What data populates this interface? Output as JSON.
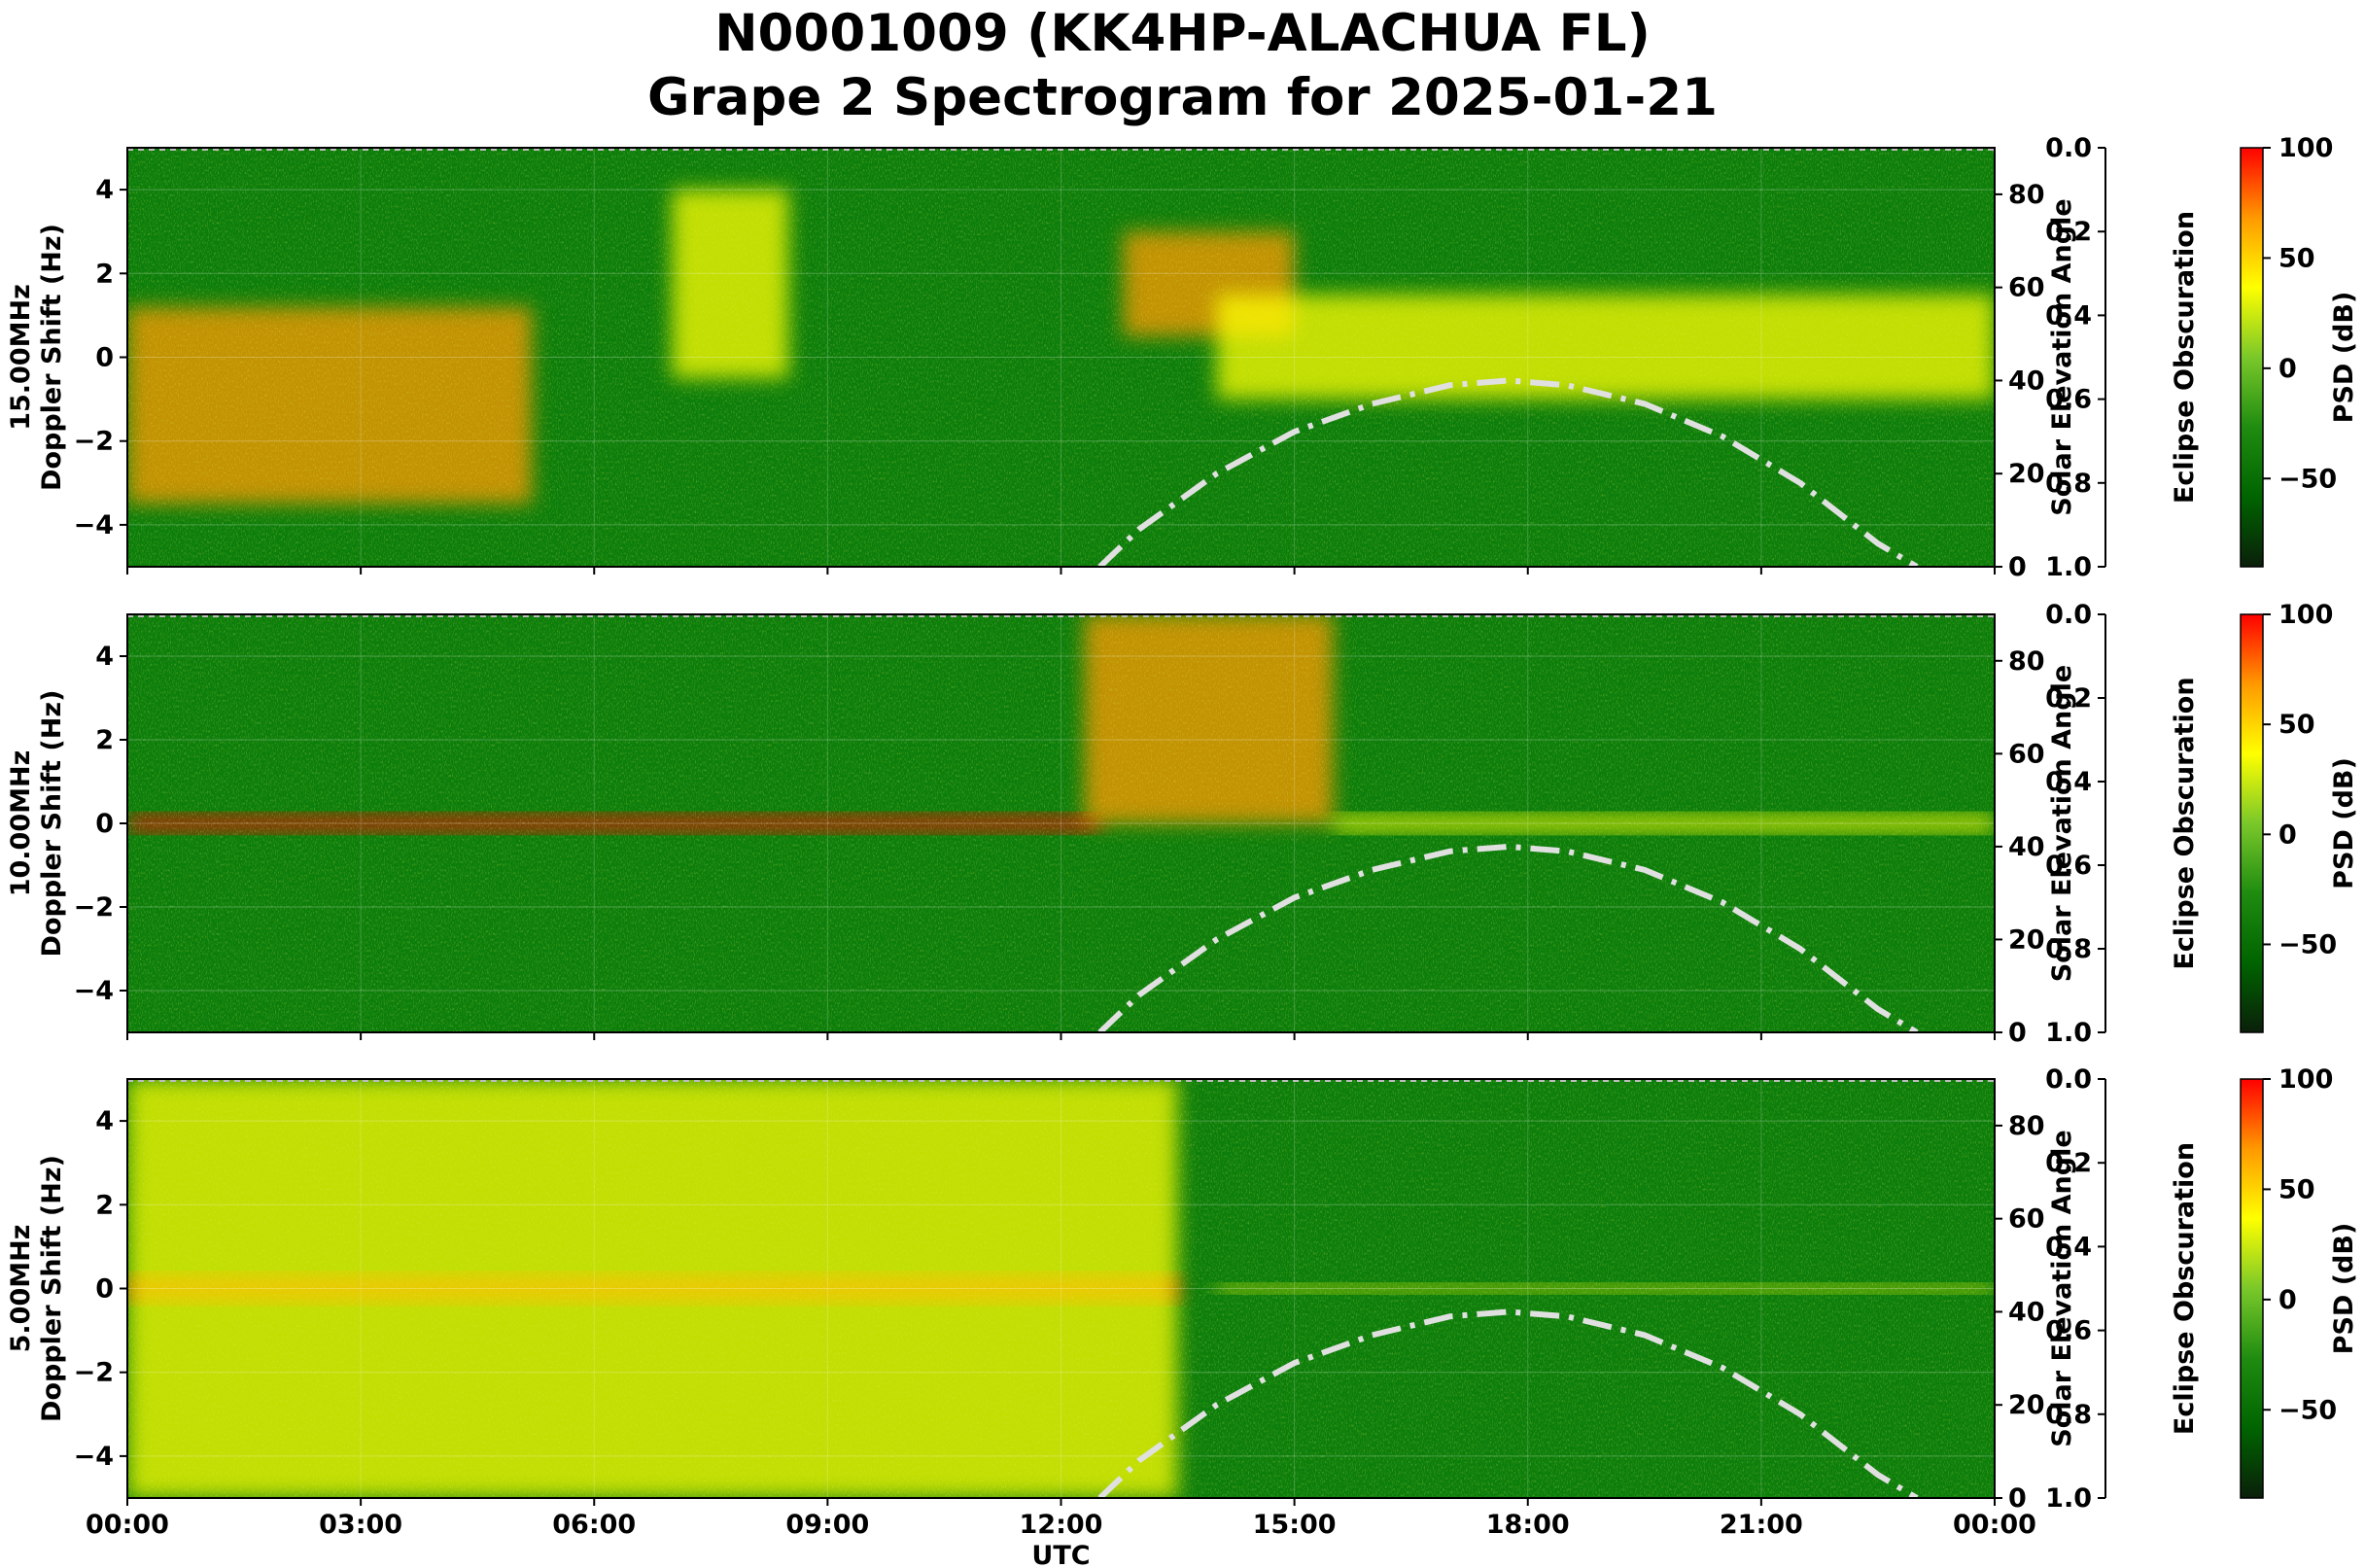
{
  "title": {
    "line1": "N0001009 (KK4HP-ALACHUA FL)",
    "line2": "Grape 2 Spectrogram for 2025-01-21"
  },
  "colors": {
    "cmap": [
      "#0a1f0a",
      "#006400",
      "#1f8c10",
      "#7ac82a",
      "#ffff00",
      "#ff9900",
      "#ff0000"
    ],
    "curve": "#e0e0e0"
  },
  "chart_data": [
    {
      "type": "heatmap",
      "band": "15.00MHz",
      "ylabel_line1": "15.00MHz",
      "ylabel_line2": "Doppler Shift (Hz)",
      "xlim": [
        0,
        24
      ],
      "ylim": [
        -5,
        5
      ],
      "yticks": [
        "4",
        "2",
        "0",
        "−2",
        "−4"
      ],
      "right_axis": {
        "label": "Solar Elevation Angle",
        "ylim": [
          0,
          90
        ],
        "ticks": [
          "80",
          "60",
          "40",
          "20",
          "0"
        ]
      },
      "obscuration_axis": {
        "label": "Eclipse Obscuration",
        "ylim": [
          0.0,
          1.0
        ],
        "ticks": [
          "0.0",
          "0.2",
          "0.4",
          "0.6",
          "0.8",
          "1.0"
        ]
      },
      "colorbar": {
        "label": "PSD (dB)",
        "range": [
          -90,
          100
        ],
        "ticks": [
          "100",
          "50",
          "0",
          "−50"
        ]
      },
      "solar_elevation": {
        "x": [
          12.5,
          13,
          14,
          15,
          16,
          17,
          17.75,
          18.5,
          19.5,
          20.5,
          21.5,
          22.5,
          23
        ],
        "y": [
          0,
          8,
          20,
          29,
          35,
          39,
          40,
          39,
          35,
          28,
          18,
          5,
          0
        ]
      },
      "features": [
        {
          "note": "spread traces",
          "x": [
            0,
            5.2
          ],
          "y": [
            -3.5,
            1.2
          ],
          "level": 55
        },
        {
          "note": "wedge",
          "x": [
            7,
            8.5
          ],
          "y": [
            -0.5,
            4
          ],
          "level": 45
        },
        {
          "note": "arc",
          "x": [
            12.8,
            15
          ],
          "y": [
            0.5,
            3
          ],
          "level": 60
        },
        {
          "note": "day trace",
          "x": [
            14,
            24
          ],
          "y": [
            -1,
            1.5
          ],
          "level": 50
        }
      ]
    },
    {
      "type": "heatmap",
      "band": "10.00MHz",
      "ylabel_line1": "10.00MHz",
      "ylabel_line2": "Doppler Shift (Hz)",
      "xlim": [
        0,
        24
      ],
      "ylim": [
        -5,
        5
      ],
      "yticks": [
        "4",
        "2",
        "0",
        "−2",
        "−4"
      ],
      "right_axis": {
        "label": "Solar Elevation Angle",
        "ylim": [
          0,
          90
        ],
        "ticks": [
          "80",
          "60",
          "40",
          "20",
          "0"
        ]
      },
      "obscuration_axis": {
        "label": "Eclipse Obscuration",
        "ylim": [
          0.0,
          1.0
        ],
        "ticks": [
          "0.0",
          "0.2",
          "0.4",
          "0.6",
          "0.8",
          "1.0"
        ]
      },
      "colorbar": {
        "label": "PSD (dB)",
        "range": [
          -90,
          100
        ],
        "ticks": [
          "100",
          "50",
          "0",
          "−50"
        ]
      },
      "solar_elevation": {
        "x": [
          12.5,
          13,
          14,
          15,
          16,
          17,
          17.75,
          18.5,
          19.5,
          20.5,
          21.5,
          22.5,
          23
        ],
        "y": [
          0,
          8,
          20,
          29,
          35,
          39,
          40,
          39,
          35,
          28,
          18,
          5,
          0
        ]
      },
      "features": [
        {
          "note": "carrier",
          "x": [
            0,
            12.5
          ],
          "y": [
            -0.2,
            0.2
          ],
          "level": 85
        },
        {
          "note": "sunrise spread",
          "x": [
            12.3,
            15.5
          ],
          "y": [
            0,
            5
          ],
          "level": 60
        },
        {
          "note": "day trace",
          "x": [
            15.5,
            24
          ],
          "y": [
            -0.2,
            0.2
          ],
          "level": 40
        }
      ]
    },
    {
      "type": "heatmap",
      "band": "5.00MHz",
      "ylabel_line1": "5.00MHz",
      "ylabel_line2": "Doppler Shift (Hz)",
      "xlim": [
        0,
        24
      ],
      "ylim": [
        -5,
        5
      ],
      "yticks": [
        "4",
        "2",
        "0",
        "−2",
        "−4"
      ],
      "right_axis": {
        "label": "Solar Elevation Angle",
        "ylim": [
          0,
          90
        ],
        "ticks": [
          "80",
          "60",
          "40",
          "20",
          "0"
        ]
      },
      "obscuration_axis": {
        "label": "Eclipse Obscuration",
        "ylim": [
          0.0,
          1.0
        ],
        "ticks": [
          "0.0",
          "0.2",
          "0.4",
          "0.6",
          "0.8",
          "1.0"
        ]
      },
      "colorbar": {
        "label": "PSD (dB)",
        "range": [
          -90,
          100
        ],
        "ticks": [
          "100",
          "50",
          "0",
          "−50"
        ]
      },
      "solar_elevation": {
        "x": [
          12.5,
          13,
          14,
          15,
          16,
          17,
          17.75,
          18.5,
          19.5,
          20.5,
          21.5,
          22.5,
          23
        ],
        "y": [
          0,
          8,
          20,
          29,
          35,
          39,
          40,
          39,
          35,
          28,
          18,
          5,
          0
        ]
      },
      "features": [
        {
          "note": "carrier",
          "x": [
            0,
            13.5
          ],
          "y": [
            -0.3,
            0.3
          ],
          "level": 90
        },
        {
          "note": "night background",
          "x": [
            0,
            13.5
          ],
          "y": [
            -5,
            5
          ],
          "level": 50
        },
        {
          "note": "day trace",
          "x": [
            14,
            24
          ],
          "y": [
            -0.1,
            0.1
          ],
          "level": 35
        }
      ]
    }
  ],
  "x_axis": {
    "label": "UTC",
    "ticks": [
      "00:00",
      "03:00",
      "06:00",
      "09:00",
      "12:00",
      "15:00",
      "18:00",
      "21:00",
      "00:00"
    ]
  }
}
